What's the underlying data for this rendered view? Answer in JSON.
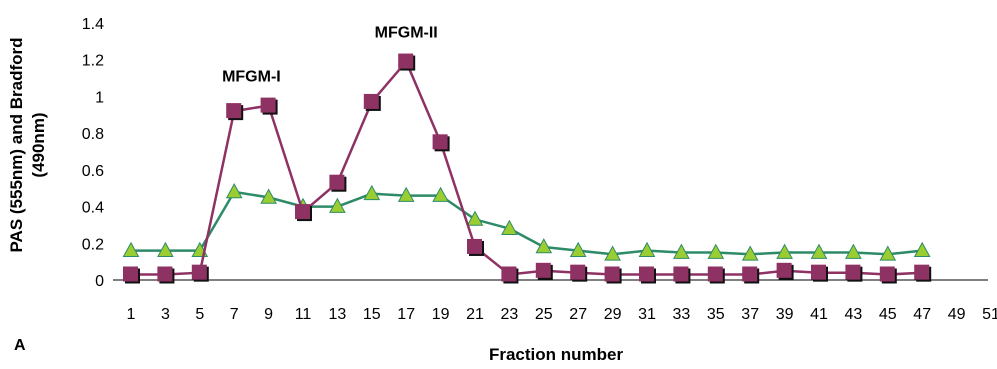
{
  "chart_data": {
    "type": "line",
    "panel_label": "A",
    "xlabel": "Fraction number",
    "ylabel_lines": [
      "PAS (555nm) and Bradford",
      "(490nm)"
    ],
    "x_ticks": [
      1,
      3,
      5,
      7,
      9,
      11,
      13,
      15,
      17,
      19,
      21,
      23,
      25,
      27,
      29,
      31,
      33,
      35,
      37,
      39,
      41,
      43,
      45,
      47,
      49,
      51
    ],
    "y_ticks": [
      0,
      0.2,
      0.4,
      0.6,
      0.8,
      1,
      1.2,
      1.4
    ],
    "y_tick_labels": [
      "0",
      "0.2",
      "0.4",
      "0.6",
      "0.8",
      "1",
      "1.2",
      "1.4"
    ],
    "ylim": [
      0,
      1.4
    ],
    "xlim": [
      1,
      51
    ],
    "annotations": [
      {
        "text": "MFGM-I",
        "x": 8,
        "y": 1.08
      },
      {
        "text": "MFGM-II",
        "x": 17,
        "y": 1.32
      }
    ],
    "x": [
      1,
      3,
      5,
      7,
      9,
      11,
      13,
      15,
      17,
      19,
      21,
      23,
      25,
      27,
      29,
      31,
      33,
      35,
      37,
      39,
      41,
      43,
      45,
      47
    ],
    "series": [
      {
        "marker": "square",
        "color": "#8e3163",
        "values": [
          0.03,
          0.03,
          0.04,
          0.92,
          0.95,
          0.37,
          0.53,
          0.97,
          1.19,
          0.75,
          0.18,
          0.03,
          0.05,
          0.04,
          0.03,
          0.03,
          0.03,
          0.03,
          0.03,
          0.05,
          0.04,
          0.04,
          0.03,
          0.04
        ]
      },
      {
        "marker": "triangle",
        "color": "#2e8b68",
        "fill": "#9acd32",
        "values": [
          0.16,
          0.16,
          0.16,
          0.48,
          0.45,
          0.4,
          0.4,
          0.47,
          0.46,
          0.46,
          0.33,
          0.28,
          0.18,
          0.16,
          0.14,
          0.16,
          0.15,
          0.15,
          0.14,
          0.15,
          0.15,
          0.15,
          0.14,
          0.16
        ]
      }
    ]
  }
}
